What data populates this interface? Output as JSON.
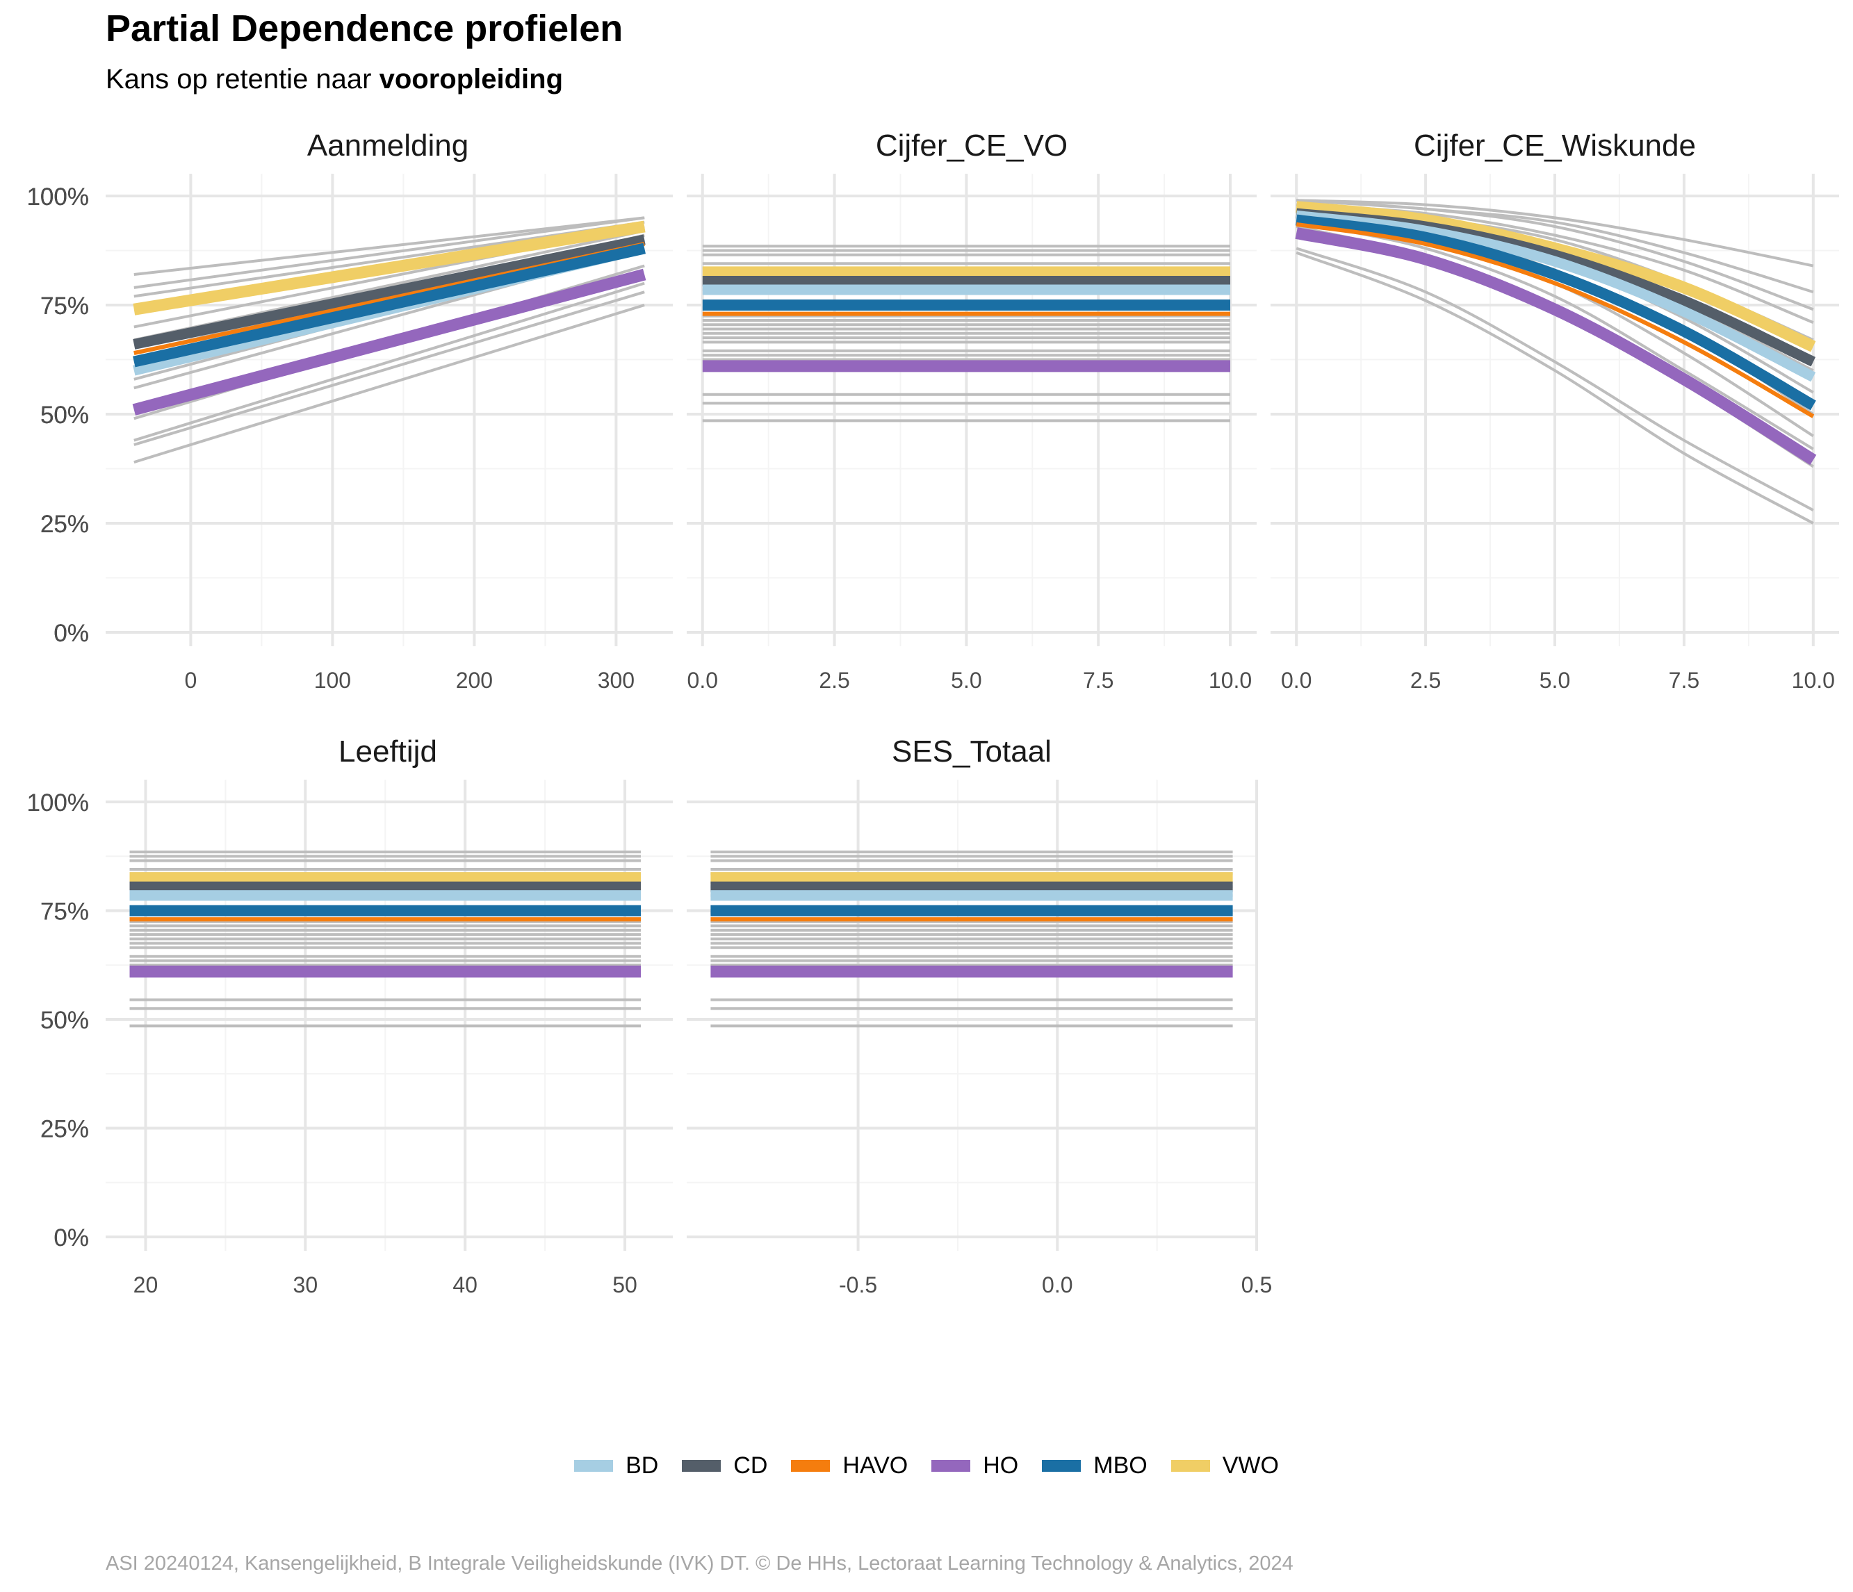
{
  "title": "Partial Dependence profielen",
  "subtitle": {
    "prefix": "Kans op retentie naar ",
    "emphasis": "vooropleiding"
  },
  "caption": "ASI 20240124, Kansengelijkheid, B Integrale Veiligheidskunde (IVK) DT. © De HHs, Lectoraat Learning Technology & Analytics, 2024",
  "legend": [
    {
      "name": "BD",
      "color": "#A6CEE3"
    },
    {
      "name": "CD",
      "color": "#545E69"
    },
    {
      "name": "HAVO",
      "color": "#F57D0E"
    },
    {
      "name": "HO",
      "color": "#9467BD"
    },
    {
      "name": "MBO",
      "color": "#1A6FA4"
    },
    {
      "name": "VWO",
      "color": "#F0CE65"
    }
  ],
  "chart_data": [
    {
      "type": "line",
      "panel": "Aanmelding",
      "xlim": [
        -60,
        340
      ],
      "ylim": [
        0,
        1
      ],
      "x_ticks": [
        "0",
        "100",
        "200",
        "300"
      ],
      "x_tick_values": [
        0,
        100,
        200,
        300
      ],
      "y_ticks": [
        "0%",
        "25%",
        "50%",
        "75%",
        "100%"
      ],
      "y_tick_values": [
        0,
        0.25,
        0.5,
        0.75,
        1
      ],
      "x": [
        -40,
        320
      ],
      "background_series": [
        [
          0.82,
          0.95
        ],
        [
          0.79,
          0.95
        ],
        [
          0.77,
          0.94
        ],
        [
          0.7,
          0.93
        ],
        [
          0.67,
          0.92
        ],
        [
          0.64,
          0.91
        ],
        [
          0.62,
          0.91
        ],
        [
          0.58,
          0.89
        ],
        [
          0.56,
          0.88
        ],
        [
          0.49,
          0.84
        ],
        [
          0.44,
          0.8
        ],
        [
          0.43,
          0.78
        ],
        [
          0.39,
          0.75
        ]
      ],
      "series": [
        {
          "name": "VWO",
          "values": [
            0.74,
            0.93
          ]
        },
        {
          "name": "CD",
          "values": [
            0.66,
            0.9
          ]
        },
        {
          "name": "HAVO",
          "values": [
            0.64,
            0.89
          ]
        },
        {
          "name": "BD",
          "values": [
            0.6,
            0.88
          ]
        },
        {
          "name": "MBO",
          "values": [
            0.62,
            0.88
          ]
        },
        {
          "name": "HO",
          "values": [
            0.51,
            0.82
          ]
        }
      ]
    },
    {
      "type": "line",
      "panel": "Cijfer_CE_VO",
      "xlim": [
        -0.3,
        10.5
      ],
      "ylim": [
        0,
        1
      ],
      "x_ticks": [
        "0.0",
        "2.5",
        "5.0",
        "7.5",
        "10.0"
      ],
      "x_tick_values": [
        0,
        2.5,
        5,
        7.5,
        10
      ],
      "y_ticks": [
        "0%",
        "25%",
        "50%",
        "75%",
        "100%"
      ],
      "y_tick_values": [
        0,
        0.25,
        0.5,
        0.75,
        1
      ],
      "x": [
        0,
        10
      ],
      "background_series": [
        0.885,
        0.875,
        0.865,
        0.845,
        0.835,
        0.805,
        0.795,
        0.785,
        0.745,
        0.725,
        0.715,
        0.705,
        0.695,
        0.685,
        0.675,
        0.665,
        0.645,
        0.635,
        0.625,
        0.545,
        0.525,
        0.485
      ],
      "series": [
        {
          "name": "VWO",
          "values": [
            0.825,
            0.825
          ]
        },
        {
          "name": "CD",
          "values": [
            0.805,
            0.805
          ]
        },
        {
          "name": "BD",
          "values": [
            0.785,
            0.785
          ]
        },
        {
          "name": "MBO",
          "values": [
            0.75,
            0.75
          ]
        },
        {
          "name": "HAVO",
          "values": [
            0.73,
            0.73
          ]
        },
        {
          "name": "HO",
          "values": [
            0.61,
            0.61
          ]
        }
      ]
    },
    {
      "type": "line",
      "panel": "Cijfer_CE_Wiskunde",
      "xlim": [
        -0.5,
        10.5
      ],
      "ylim": [
        0,
        1
      ],
      "x_ticks": [
        "0.0",
        "2.5",
        "5.0",
        "7.5",
        "10.0"
      ],
      "x_tick_values": [
        0,
        2.5,
        5,
        7.5,
        10
      ],
      "y_ticks": [
        "0%",
        "25%",
        "50%",
        "75%",
        "100%"
      ],
      "y_tick_values": [
        0,
        0.25,
        0.5,
        0.75,
        1
      ],
      "x": [
        0,
        2.5,
        5,
        7.5,
        10
      ],
      "background_series": [
        [
          0.99,
          0.98,
          0.95,
          0.9,
          0.84
        ],
        [
          0.99,
          0.97,
          0.94,
          0.87,
          0.78
        ],
        [
          0.99,
          0.97,
          0.93,
          0.85,
          0.74
        ],
        [
          0.98,
          0.96,
          0.91,
          0.83,
          0.71
        ],
        [
          0.98,
          0.95,
          0.9,
          0.8,
          0.67
        ],
        [
          0.97,
          0.94,
          0.87,
          0.75,
          0.6
        ],
        [
          0.97,
          0.93,
          0.85,
          0.72,
          0.55
        ],
        [
          0.96,
          0.92,
          0.83,
          0.69,
          0.5
        ],
        [
          0.95,
          0.9,
          0.8,
          0.64,
          0.45
        ],
        [
          0.94,
          0.88,
          0.77,
          0.6,
          0.42
        ],
        [
          0.93,
          0.86,
          0.74,
          0.57,
          0.38
        ],
        [
          0.88,
          0.78,
          0.62,
          0.44,
          0.28
        ],
        [
          0.87,
          0.76,
          0.6,
          0.41,
          0.25
        ]
      ],
      "series": [
        {
          "name": "VWO",
          "values": [
            0.975,
            0.945,
            0.88,
            0.79,
            0.655
          ]
        },
        {
          "name": "CD",
          "values": [
            0.96,
            0.93,
            0.865,
            0.76,
            0.62
          ]
        },
        {
          "name": "BD",
          "values": [
            0.955,
            0.92,
            0.85,
            0.735,
            0.585
          ]
        },
        {
          "name": "MBO",
          "values": [
            0.945,
            0.905,
            0.82,
            0.69,
            0.52
          ]
        },
        {
          "name": "HAVO",
          "values": [
            0.935,
            0.89,
            0.8,
            0.665,
            0.495
          ]
        },
        {
          "name": "HO",
          "values": [
            0.915,
            0.855,
            0.74,
            0.58,
            0.395
          ]
        }
      ]
    },
    {
      "type": "line",
      "panel": "Leeftijd",
      "xlim": [
        17.5,
        53
      ],
      "ylim": [
        0,
        1
      ],
      "x_ticks": [
        "20",
        "30",
        "40",
        "50"
      ],
      "x_tick_values": [
        20,
        30,
        40,
        50
      ],
      "y_ticks": [
        "0%",
        "25%",
        "50%",
        "75%",
        "100%"
      ],
      "y_tick_values": [
        0,
        0.25,
        0.5,
        0.75,
        1
      ],
      "x": [
        19,
        51
      ],
      "background_series": [
        0.885,
        0.875,
        0.865,
        0.845,
        0.835,
        0.805,
        0.795,
        0.785,
        0.745,
        0.725,
        0.715,
        0.705,
        0.695,
        0.685,
        0.675,
        0.665,
        0.645,
        0.635,
        0.625,
        0.545,
        0.525,
        0.485
      ],
      "series": [
        {
          "name": "VWO",
          "values": [
            0.825,
            0.825
          ]
        },
        {
          "name": "CD",
          "values": [
            0.805,
            0.805
          ]
        },
        {
          "name": "BD",
          "values": [
            0.785,
            0.785
          ]
        },
        {
          "name": "MBO",
          "values": [
            0.75,
            0.75
          ]
        },
        {
          "name": "HAVO",
          "values": [
            0.73,
            0.73
          ]
        },
        {
          "name": "HO",
          "values": [
            0.61,
            0.61
          ]
        }
      ]
    },
    {
      "type": "line",
      "panel": "SES_Totaal",
      "xlim": [
        -0.93,
        0.5
      ],
      "ylim": [
        0,
        1
      ],
      "x_ticks": [
        "-0.5",
        "0.0",
        "0.5"
      ],
      "x_tick_values": [
        -0.5,
        0,
        0.5
      ],
      "y_ticks": [
        "0%",
        "25%",
        "50%",
        "75%",
        "100%"
      ],
      "y_tick_values": [
        0,
        0.25,
        0.5,
        0.75,
        1
      ],
      "x": [
        -0.87,
        0.44
      ],
      "background_series": [
        0.885,
        0.875,
        0.865,
        0.845,
        0.835,
        0.805,
        0.795,
        0.785,
        0.745,
        0.725,
        0.715,
        0.705,
        0.695,
        0.685,
        0.675,
        0.665,
        0.645,
        0.635,
        0.625,
        0.545,
        0.525,
        0.485
      ],
      "series": [
        {
          "name": "VWO",
          "values": [
            0.825,
            0.825
          ]
        },
        {
          "name": "CD",
          "values": [
            0.805,
            0.805
          ]
        },
        {
          "name": "BD",
          "values": [
            0.785,
            0.785
          ]
        },
        {
          "name": "MBO",
          "values": [
            0.75,
            0.75
          ]
        },
        {
          "name": "HAVO",
          "values": [
            0.73,
            0.73
          ]
        },
        {
          "name": "HO",
          "values": [
            0.61,
            0.61
          ]
        }
      ]
    }
  ]
}
